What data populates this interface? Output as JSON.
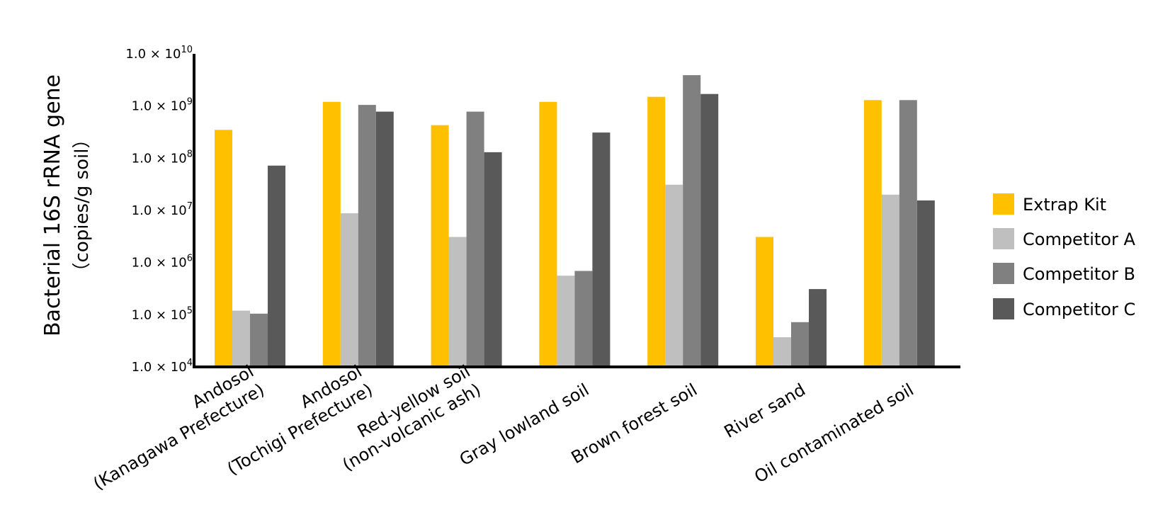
{
  "chart_data": {
    "type": "bar",
    "title": "",
    "ylabel": "Bacterial 16S rRNA gene",
    "ylabel_sub": "（copies/g soil）",
    "xlabel": "",
    "yscale": "log",
    "ylim": [
      10000,
      10000000000
    ],
    "yticks": [
      {
        "value": 10000,
        "mantissa": "1.0",
        "exponent": "4"
      },
      {
        "value": 100000,
        "mantissa": "1.0",
        "exponent": "5"
      },
      {
        "value": 1000000,
        "mantissa": "1.0",
        "exponent": "6"
      },
      {
        "value": 10000000,
        "mantissa": "1.0",
        "exponent": "7"
      },
      {
        "value": 100000000,
        "mantissa": "1.0",
        "exponent": "8"
      },
      {
        "value": 1000000000,
        "mantissa": "1.0",
        "exponent": "9"
      },
      {
        "value": 10000000000,
        "mantissa": "1.0",
        "exponent": "10"
      }
    ],
    "times_sign": "×",
    "categories": [
      [
        "Andosol",
        "(Kanagawa Prefecture)"
      ],
      [
        "Andosol",
        "(Tochigi Prefecture)"
      ],
      [
        "Red-yellow soil",
        "(non-volcanic ash)"
      ],
      [
        "Gray lowland soil"
      ],
      [
        "Brown forest soil"
      ],
      [
        "River sand"
      ],
      [
        "Oil contaminated soil"
      ]
    ],
    "legend_position": "right",
    "series": [
      {
        "name": "Extrap Kit",
        "color": "#FFC000",
        "values": [
          350000000,
          1200000000,
          430000000,
          1200000000,
          1500000000,
          3100000,
          1300000000
        ]
      },
      {
        "name": "Competitor A",
        "color": "#BFBFBF",
        "values": [
          120000,
          8800000,
          3100000,
          560000,
          31000000,
          37000,
          20000000
        ]
      },
      {
        "name": "Competitor B",
        "color": "#808080",
        "values": [
          105000,
          1050000000,
          780000000,
          690000,
          3900000000,
          72000,
          1300000000
        ]
      },
      {
        "name": "Competitor C",
        "color": "#595959",
        "values": [
          72000000,
          780000000,
          130000000,
          310000000,
          1700000000,
          310000,
          15500000
        ]
      }
    ]
  }
}
